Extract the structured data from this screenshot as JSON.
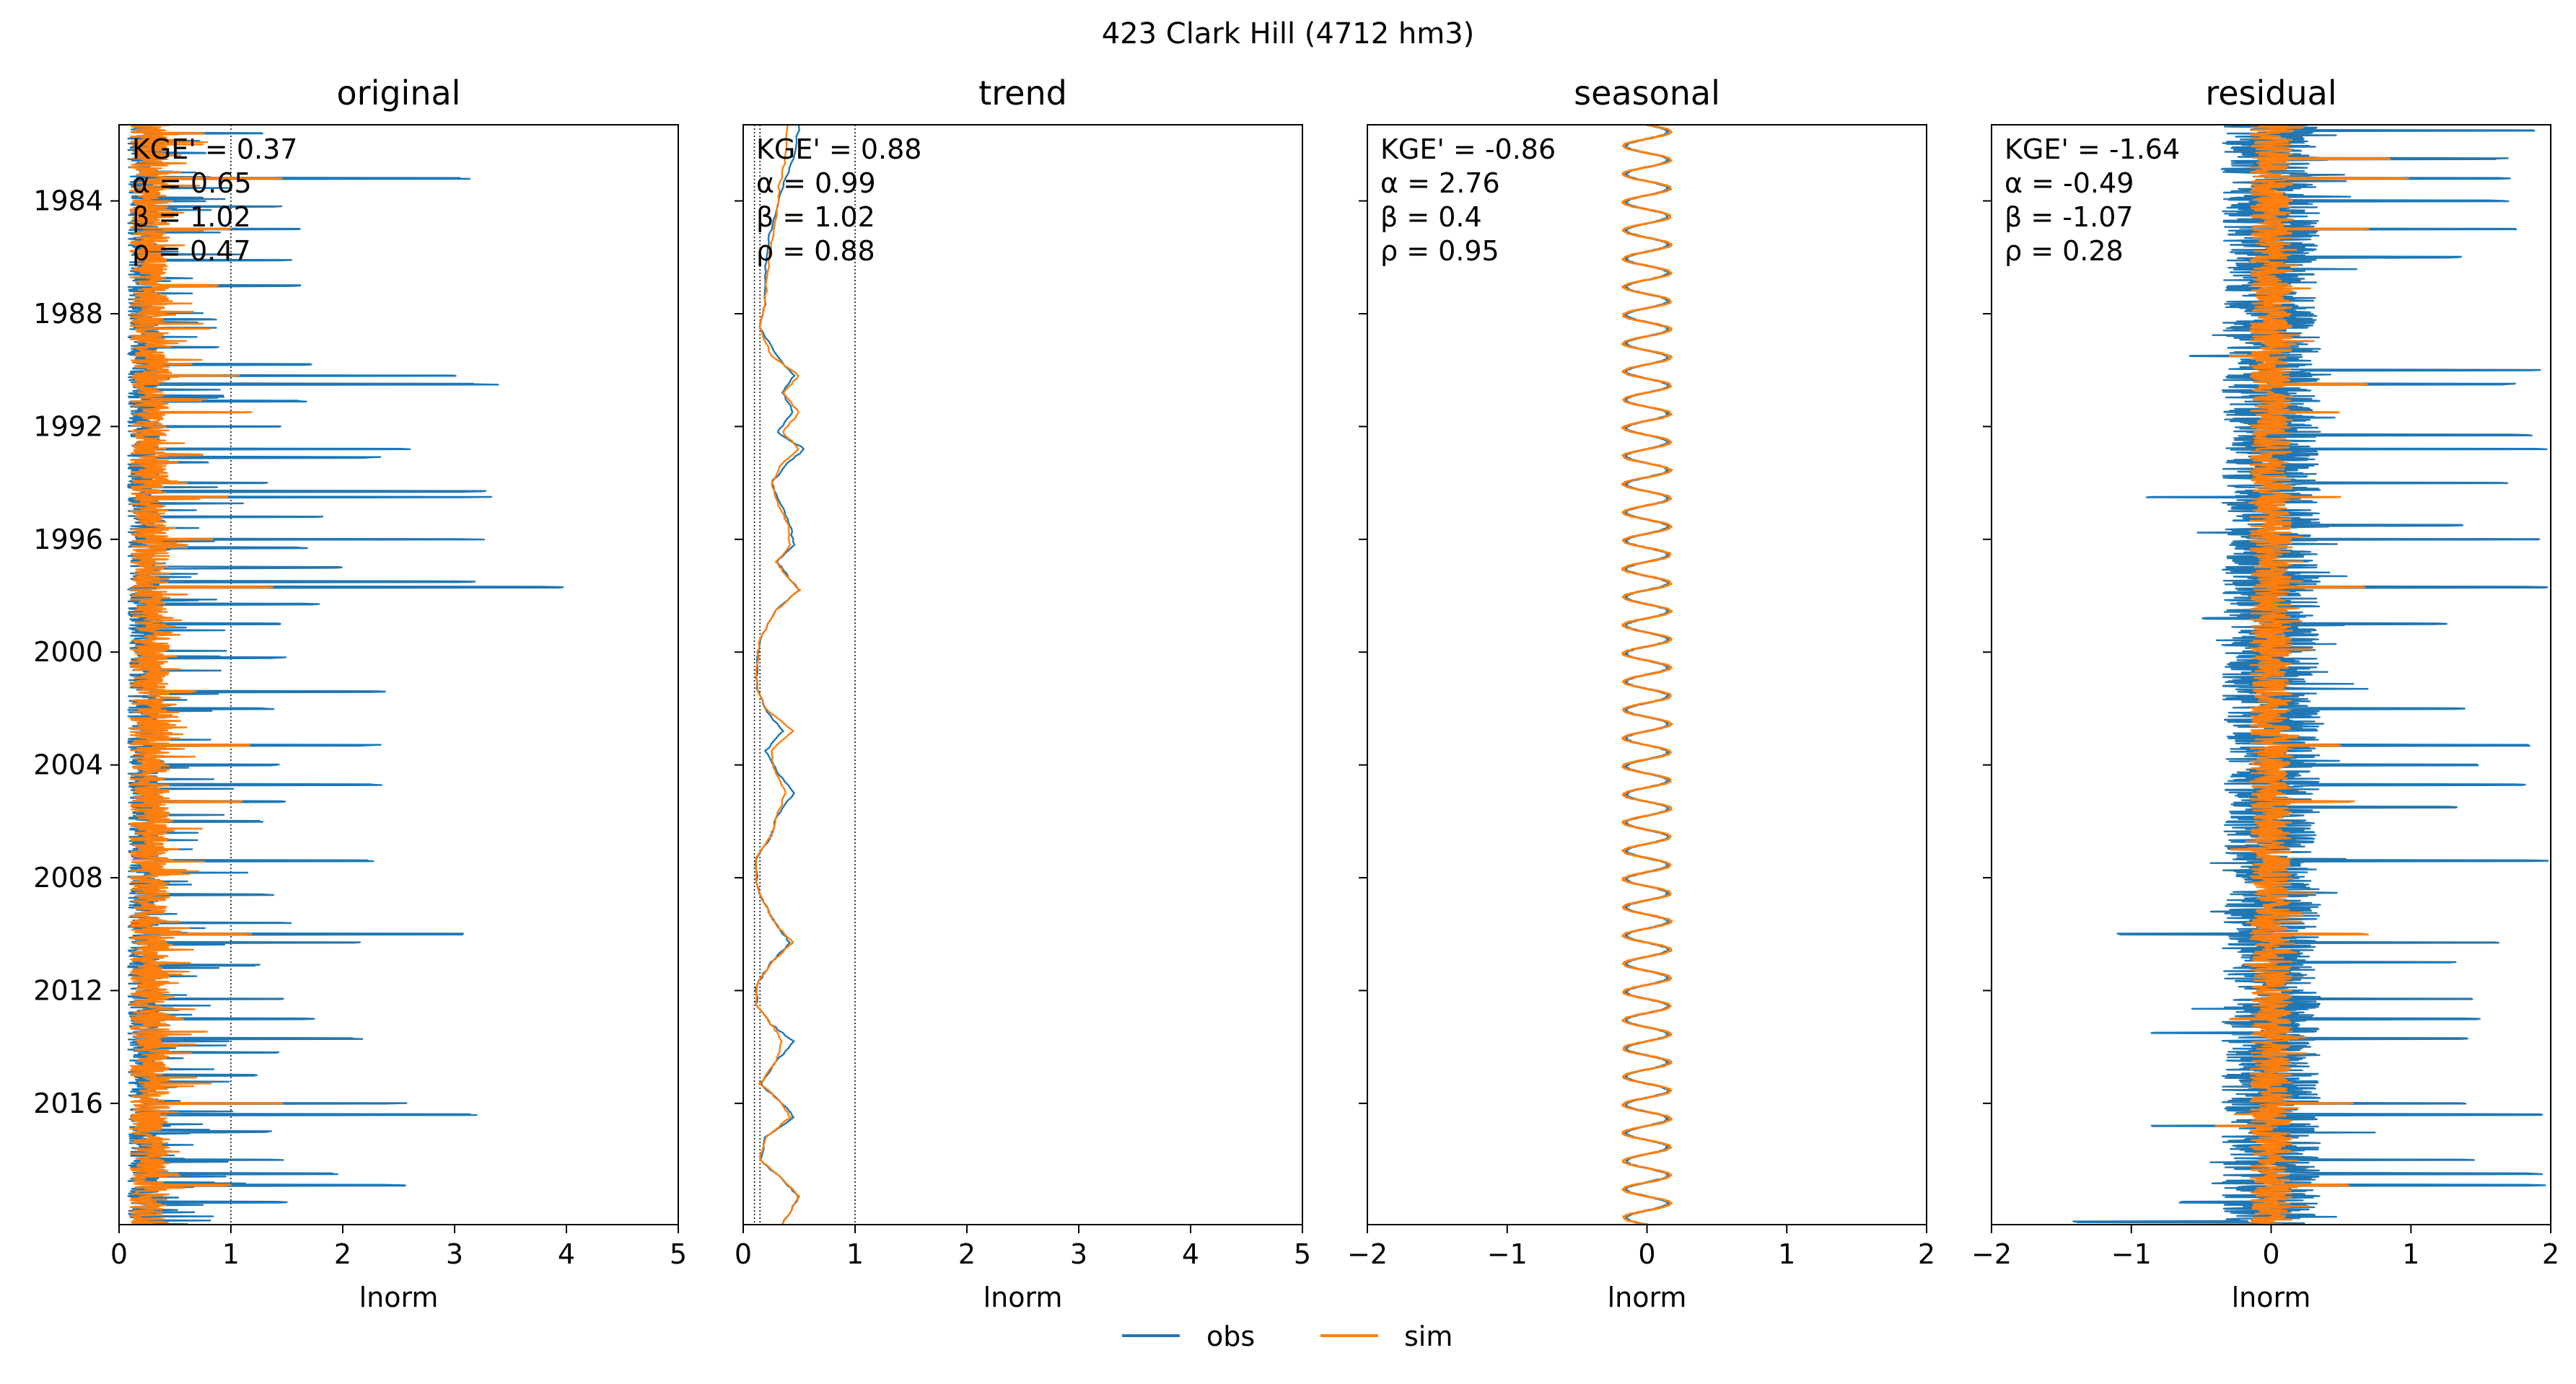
{
  "figure": {
    "suptitle": "423  Clark Hill (4712 hm3)",
    "legend": [
      {
        "label": "obs",
        "color": "#1f77b4"
      },
      {
        "label": "sim",
        "color": "#ff7f0e"
      }
    ]
  },
  "chart_data": [
    {
      "type": "line",
      "title": "original",
      "xlabel": "lnorm",
      "xlim": [
        0,
        5
      ],
      "xticks": [
        "0",
        "1",
        "2",
        "3",
        "4",
        "5"
      ],
      "ylim_years": [
        1981.3,
        2020.3
      ],
      "yticks": [
        "1984",
        "1988",
        "1992",
        "1996",
        "2000",
        "2004",
        "2008",
        "2012",
        "2016"
      ],
      "reference_lines": [
        1.0
      ],
      "annotation": [
        "KGE' = 0.37",
        "α = 0.65",
        "β = 1.02",
        "ρ = 0.47"
      ],
      "series": [
        {
          "name": "obs",
          "peaks": [
            [
              1981.6,
              1.3
            ],
            [
              1982.3,
              0.8
            ],
            [
              1983.2,
              3.2
            ],
            [
              1984.2,
              1.5
            ],
            [
              1985.0,
              1.7
            ],
            [
              1986.1,
              1.6
            ],
            [
              1987.0,
              1.7
            ],
            [
              1988.2,
              0.9
            ],
            [
              1989.8,
              1.8
            ],
            [
              1990.2,
              3.3
            ],
            [
              1990.5,
              3.4
            ],
            [
              1991.1,
              1.7
            ],
            [
              1992.0,
              1.5
            ],
            [
              1992.8,
              2.7
            ],
            [
              1993.1,
              2.4
            ],
            [
              1994.0,
              1.4
            ],
            [
              1994.3,
              3.3
            ],
            [
              1994.5,
              3.4
            ],
            [
              1995.2,
              1.9
            ],
            [
              1996.0,
              3.3
            ],
            [
              1996.3,
              1.7
            ],
            [
              1997.0,
              2.0
            ],
            [
              1997.5,
              3.2
            ],
            [
              1997.7,
              4.2
            ],
            [
              1998.3,
              1.8
            ],
            [
              1999.0,
              1.5
            ],
            [
              2000.2,
              1.5
            ],
            [
              2001.4,
              2.4
            ],
            [
              2002.0,
              1.4
            ],
            [
              2003.3,
              2.4
            ],
            [
              2004.0,
              1.5
            ],
            [
              2004.7,
              2.5
            ],
            [
              2005.3,
              1.5
            ],
            [
              2006.0,
              1.3
            ],
            [
              2007.4,
              2.4
            ],
            [
              2008.6,
              1.4
            ],
            [
              2009.6,
              1.6
            ],
            [
              2010.0,
              3.1
            ],
            [
              2010.3,
              2.3
            ],
            [
              2011.1,
              1.3
            ],
            [
              2012.3,
              1.6
            ],
            [
              2013.0,
              1.8
            ],
            [
              2013.7,
              2.3
            ],
            [
              2014.2,
              1.5
            ],
            [
              2015.0,
              1.3
            ],
            [
              2016.0,
              2.6
            ],
            [
              2016.4,
              3.2
            ],
            [
              2017.0,
              1.4
            ],
            [
              2018.0,
              1.5
            ],
            [
              2018.5,
              2.0
            ],
            [
              2018.9,
              2.6
            ],
            [
              2019.5,
              1.5
            ]
          ],
          "base": 0.2
        },
        {
          "name": "sim",
          "peaks": [
            [
              1981.6,
              0.8
            ],
            [
              1983.2,
              1.5
            ],
            [
              1985.0,
              1.0
            ],
            [
              1987.0,
              0.9
            ],
            [
              1990.2,
              1.1
            ],
            [
              1991.5,
              1.2
            ],
            [
              1993.0,
              0.8
            ],
            [
              1994.5,
              1.0
            ],
            [
              1996.0,
              0.9
            ],
            [
              1997.7,
              1.4
            ],
            [
              2001.4,
              0.7
            ],
            [
              2003.3,
              1.2
            ],
            [
              2005.3,
              1.1
            ],
            [
              2007.4,
              0.5
            ],
            [
              2010.0,
              1.2
            ],
            [
              2013.0,
              0.6
            ],
            [
              2014.2,
              0.5
            ],
            [
              2016.0,
              1.5
            ],
            [
              2018.9,
              1.0
            ]
          ],
          "base": 0.25
        }
      ]
    },
    {
      "type": "line",
      "title": "trend",
      "xlabel": "lnorm",
      "xlim": [
        0,
        5
      ],
      "xticks": [
        "0",
        "1",
        "2",
        "3",
        "4",
        "5"
      ],
      "ylim_years": [
        1981.3,
        2020.3
      ],
      "yticks": [
        "1984",
        "1988",
        "1992",
        "1996",
        "2000",
        "2004",
        "2008",
        "2012",
        "2016"
      ],
      "reference_lines": [
        0.1,
        0.15,
        1.0
      ],
      "annotation": [
        "KGE' = 0.88",
        "α = 0.99",
        "β = 1.02",
        "ρ = 0.88"
      ],
      "series": [
        {
          "name": "obs",
          "points": [
            [
              1981.3,
              0.5
            ],
            [
              1982.5,
              0.45
            ],
            [
              1983.5,
              0.35
            ],
            [
              1984.5,
              0.28
            ],
            [
              1985.5,
              0.22
            ],
            [
              1986.5,
              0.2
            ],
            [
              1987.5,
              0.2
            ],
            [
              1988.5,
              0.15
            ],
            [
              1989.5,
              0.3
            ],
            [
              1990.2,
              0.45
            ],
            [
              1990.8,
              0.35
            ],
            [
              1991.5,
              0.45
            ],
            [
              1992.2,
              0.3
            ],
            [
              1992.8,
              0.55
            ],
            [
              1993.3,
              0.4
            ],
            [
              1994.0,
              0.25
            ],
            [
              1994.8,
              0.35
            ],
            [
              1995.5,
              0.42
            ],
            [
              1996.2,
              0.45
            ],
            [
              1996.8,
              0.3
            ],
            [
              1997.3,
              0.4
            ],
            [
              1997.8,
              0.5
            ],
            [
              1998.5,
              0.3
            ],
            [
              1999.5,
              0.15
            ],
            [
              2000.5,
              0.12
            ],
            [
              2001.3,
              0.12
            ],
            [
              2002.0,
              0.2
            ],
            [
              2002.8,
              0.35
            ],
            [
              2003.5,
              0.2
            ],
            [
              2004.2,
              0.3
            ],
            [
              2005.0,
              0.45
            ],
            [
              2005.8,
              0.3
            ],
            [
              2006.5,
              0.25
            ],
            [
              2007.3,
              0.12
            ],
            [
              2008.3,
              0.12
            ],
            [
              2009.0,
              0.2
            ],
            [
              2009.7,
              0.3
            ],
            [
              2010.3,
              0.42
            ],
            [
              2011.0,
              0.25
            ],
            [
              2011.8,
              0.12
            ],
            [
              2012.5,
              0.12
            ],
            [
              2013.2,
              0.25
            ],
            [
              2013.8,
              0.45
            ],
            [
              2014.5,
              0.3
            ],
            [
              2015.3,
              0.15
            ],
            [
              2016.0,
              0.35
            ],
            [
              2016.5,
              0.45
            ],
            [
              2017.2,
              0.2
            ],
            [
              2018.0,
              0.15
            ],
            [
              2018.7,
              0.35
            ],
            [
              2019.3,
              0.5
            ],
            [
              2020.3,
              0.35
            ]
          ]
        },
        {
          "name": "sim",
          "points": [
            [
              1981.3,
              0.4
            ],
            [
              1982.5,
              0.38
            ],
            [
              1983.5,
              0.32
            ],
            [
              1984.5,
              0.3
            ],
            [
              1985.5,
              0.25
            ],
            [
              1986.5,
              0.22
            ],
            [
              1987.5,
              0.2
            ],
            [
              1988.5,
              0.15
            ],
            [
              1989.5,
              0.25
            ],
            [
              1990.2,
              0.5
            ],
            [
              1990.8,
              0.35
            ],
            [
              1991.5,
              0.5
            ],
            [
              1992.2,
              0.35
            ],
            [
              1992.8,
              0.5
            ],
            [
              1993.3,
              0.35
            ],
            [
              1994.0,
              0.25
            ],
            [
              1994.8,
              0.32
            ],
            [
              1995.5,
              0.4
            ],
            [
              1996.2,
              0.42
            ],
            [
              1996.8,
              0.3
            ],
            [
              1997.3,
              0.38
            ],
            [
              1997.8,
              0.5
            ],
            [
              1998.5,
              0.3
            ],
            [
              1999.5,
              0.15
            ],
            [
              2000.5,
              0.12
            ],
            [
              2001.3,
              0.12
            ],
            [
              2002.0,
              0.2
            ],
            [
              2002.8,
              0.45
            ],
            [
              2003.5,
              0.25
            ],
            [
              2004.2,
              0.28
            ],
            [
              2005.0,
              0.38
            ],
            [
              2005.8,
              0.3
            ],
            [
              2006.5,
              0.25
            ],
            [
              2007.3,
              0.12
            ],
            [
              2008.3,
              0.12
            ],
            [
              2009.0,
              0.2
            ],
            [
              2009.7,
              0.3
            ],
            [
              2010.3,
              0.45
            ],
            [
              2011.0,
              0.25
            ],
            [
              2011.8,
              0.12
            ],
            [
              2012.5,
              0.12
            ],
            [
              2013.2,
              0.25
            ],
            [
              2013.8,
              0.35
            ],
            [
              2014.5,
              0.3
            ],
            [
              2015.3,
              0.15
            ],
            [
              2016.0,
              0.35
            ],
            [
              2016.5,
              0.42
            ],
            [
              2017.2,
              0.2
            ],
            [
              2018.0,
              0.15
            ],
            [
              2018.7,
              0.35
            ],
            [
              2019.3,
              0.5
            ],
            [
              2020.3,
              0.35
            ]
          ]
        }
      ]
    },
    {
      "type": "line",
      "title": "seasonal",
      "xlabel": "lnorm",
      "xlim": [
        -2,
        2
      ],
      "xticks": [
        "−2",
        "−1",
        "0",
        "1",
        "2"
      ],
      "ylim_years": [
        1981.3,
        2020.3
      ],
      "yticks": [
        "1984",
        "1988",
        "1992",
        "1996",
        "2000",
        "2004",
        "2008",
        "2012",
        "2016"
      ],
      "reference_lines": [],
      "annotation": [
        "KGE' = -0.86",
        "α = 2.76",
        "β = 0.4",
        "ρ = 0.95"
      ],
      "series": [
        {
          "name": "obs",
          "amplitude": 0.15,
          "center": 0.0,
          "period_years": 1.0
        },
        {
          "name": "sim",
          "amplitude": 0.17,
          "center": 0.0,
          "period_years": 1.0
        }
      ]
    },
    {
      "type": "line",
      "title": "residual",
      "xlabel": "lnorm",
      "xlim": [
        -2,
        2
      ],
      "xticks": [
        "−2",
        "−1",
        "0",
        "1",
        "2"
      ],
      "ylim_years": [
        1981.3,
        2020.3
      ],
      "yticks": [
        "1984",
        "1988",
        "1992",
        "1996",
        "2000",
        "2004",
        "2008",
        "2012",
        "2016"
      ],
      "reference_lines": [],
      "annotation": [
        "KGE' = -1.64",
        "α = -0.49",
        "β = -1.07",
        "ρ = 0.28"
      ],
      "series": [
        {
          "name": "obs",
          "spread": 0.35,
          "peaks": [
            [
              1981.5,
              1.9
            ],
            [
              1982.5,
              1.7
            ],
            [
              1983.2,
              1.8
            ],
            [
              1984.0,
              1.7
            ],
            [
              1985.0,
              1.8
            ],
            [
              1986.0,
              1.4
            ],
            [
              1990.0,
              2.0
            ],
            [
              1990.5,
              1.8
            ],
            [
              1992.3,
              1.9
            ],
            [
              1992.8,
              2.0
            ],
            [
              1994.0,
              1.8
            ],
            [
              1994.5,
              2.0
            ],
            [
              1995.5,
              1.4
            ],
            [
              1996.0,
              2.0
            ],
            [
              1997.7,
              2.0
            ],
            [
              1999.0,
              1.3
            ],
            [
              2002.0,
              1.4
            ],
            [
              2003.3,
              2.0
            ],
            [
              2004.0,
              1.5
            ],
            [
              2004.7,
              1.9
            ],
            [
              2005.5,
              1.4
            ],
            [
              2007.4,
              2.0
            ],
            [
              2010.0,
              1.8
            ],
            [
              2010.3,
              1.7
            ],
            [
              2011.0,
              1.4
            ],
            [
              2012.3,
              1.5
            ],
            [
              2013.0,
              1.5
            ],
            [
              2013.7,
              1.5
            ],
            [
              2016.0,
              1.4
            ],
            [
              2016.4,
              2.0
            ],
            [
              2018.0,
              1.5
            ],
            [
              2018.5,
              2.0
            ],
            [
              2018.9,
              2.0
            ]
          ],
          "negpeaks": [
            [
              1989.5,
              -0.6
            ],
            [
              1994.5,
              -0.9
            ],
            [
              1998.8,
              -0.5
            ],
            [
              2010.0,
              -1.1
            ],
            [
              2013.5,
              -0.9
            ],
            [
              2016.8,
              -0.9
            ],
            [
              2019.5,
              -0.7
            ],
            [
              2020.2,
              -1.5
            ]
          ]
        },
        {
          "name": "sim",
          "spread": 0.15,
          "peaks": [
            [
              1982.5,
              0.9
            ],
            [
              1983.2,
              1.0
            ],
            [
              1985.0,
              0.7
            ],
            [
              1990.5,
              0.7
            ],
            [
              1991.5,
              0.5
            ],
            [
              1994.5,
              0.5
            ],
            [
              1997.7,
              0.7
            ],
            [
              2003.3,
              0.5
            ],
            [
              2005.3,
              0.6
            ],
            [
              2010.0,
              0.7
            ],
            [
              2016.0,
              0.6
            ],
            [
              2018.9,
              0.6
            ]
          ],
          "negpeaks": [
            [
              1989.5,
              -0.3
            ],
            [
              2007.0,
              -0.3
            ],
            [
              2013.0,
              -0.3
            ],
            [
              2016.8,
              -0.4
            ]
          ]
        }
      ]
    }
  ]
}
